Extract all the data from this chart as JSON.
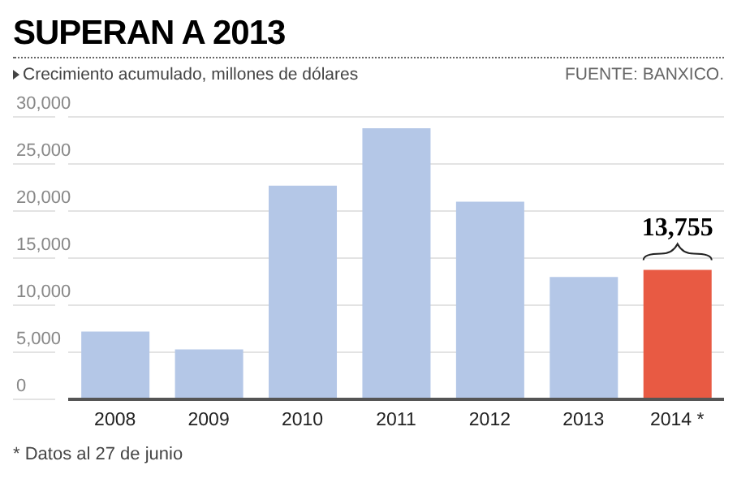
{
  "chart_data": {
    "type": "bar",
    "title": "SUPERAN A 2013",
    "subtitle": "Crecimiento acumulado, millones de dólares",
    "annotations": [
      "FUENTE: BANXICO.",
      "* Datos al 27 de junio"
    ],
    "categories": [
      "2008",
      "2009",
      "2010",
      "2011",
      "2012",
      "2013",
      "2014 *"
    ],
    "values": [
      7200,
      5300,
      22700,
      28800,
      21000,
      13000,
      13755
    ],
    "value_labels": [
      null,
      null,
      null,
      null,
      null,
      null,
      "13,755"
    ],
    "colors": [
      "#b4c7e7",
      "#b4c7e7",
      "#b4c7e7",
      "#b4c7e7",
      "#b4c7e7",
      "#b4c7e7",
      "#e85a43"
    ],
    "ylim": [
      0,
      30000
    ],
    "yticks": [
      0,
      {
        "value": 5000,
        "label": "5,000"
      },
      {
        "value": 10000,
        "label": "10,000"
      },
      {
        "value": 15000,
        "label": "15,000"
      },
      {
        "value": 20000,
        "label": "20,000"
      },
      {
        "value": 25000,
        "label": "25,000"
      },
      {
        "value": 30000,
        "label": "30,000"
      }
    ],
    "grid": "y"
  }
}
